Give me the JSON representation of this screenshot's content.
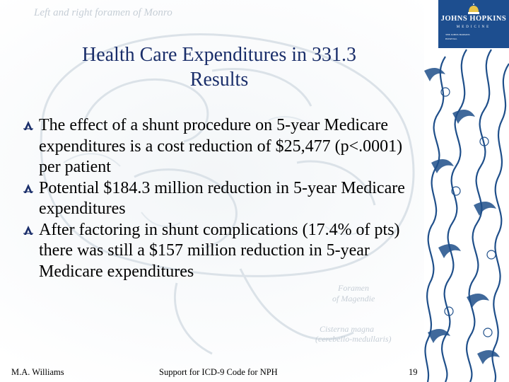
{
  "slide": {
    "title_line1": "Health Care Expenditures in 331.3",
    "title_line2": "Results",
    "bullets": [
      "The effect of a shunt procedure on 5-year Medicare expenditures is a cost reduction of $25,477 (p<.0001) per patient",
      "Potential $184.3 million reduction in 5-year Medicare expenditures",
      "After factoring in shunt complications (17.4% of pts) there was still a $157 million reduction in 5-year Medicare expenditures"
    ]
  },
  "background": {
    "caption_top": "Left and right foramen of Monro",
    "caption_mid1": "Foramen",
    "caption_mid2": "of Magendie",
    "caption_low1": "Cisterna magna",
    "caption_low2": "(cerebello-medullaris)"
  },
  "logo": {
    "name": "JOHNS HOPKINS",
    "subtitle": "MEDICINE",
    "fine1": "THE JOHNS HOPKINS",
    "fine2": "HOSPITAL"
  },
  "footer": {
    "author": "M.A. Williams",
    "center": "Support for ICD-9 Code for NPH",
    "page": "19"
  },
  "colors": {
    "title": "#1a2e6a",
    "logo_bg": "#1d4e8f",
    "wave": "#1f4f8a"
  },
  "icons": {
    "bullet": "flourish-bullet-icon",
    "emblem": "dome-emblem-icon"
  }
}
